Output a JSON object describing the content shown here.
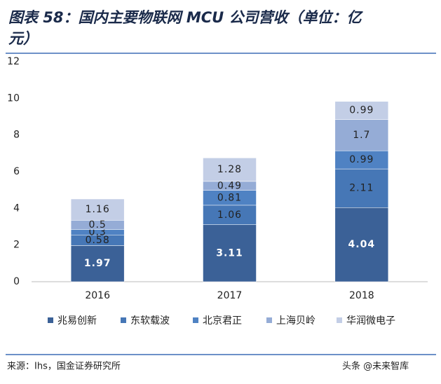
{
  "chart_data": {
    "type": "stacked_bar",
    "title": "图表 58：国内主要物联网 MCU 公司营收（单位：亿元）",
    "categories": [
      "2016",
      "2017",
      "2018"
    ],
    "series": [
      {
        "name": "兆易创新",
        "color": "#3b6197",
        "values": [
          1.97,
          3.11,
          4.04
        ]
      },
      {
        "name": "东软载波",
        "color": "#4677b6",
        "values": [
          0.58,
          1.06,
          2.11
        ]
      },
      {
        "name": "北京君正",
        "color": "#4f82c3",
        "values": [
          0.3,
          0.81,
          0.99
        ]
      },
      {
        "name": "上海贝岭",
        "color": "#95acd6",
        "values": [
          0.5,
          0.49,
          1.7
        ]
      },
      {
        "name": "华润微电子",
        "color": "#c3cee6",
        "values": [
          1.16,
          1.28,
          0.99
        ]
      }
    ],
    "ylim": [
      0,
      12
    ],
    "yticks": [
      0,
      2,
      4,
      6,
      8,
      10,
      12
    ],
    "source": "来源：Ihs，国金证券研究所",
    "watermark": "头条 @未来智库"
  }
}
